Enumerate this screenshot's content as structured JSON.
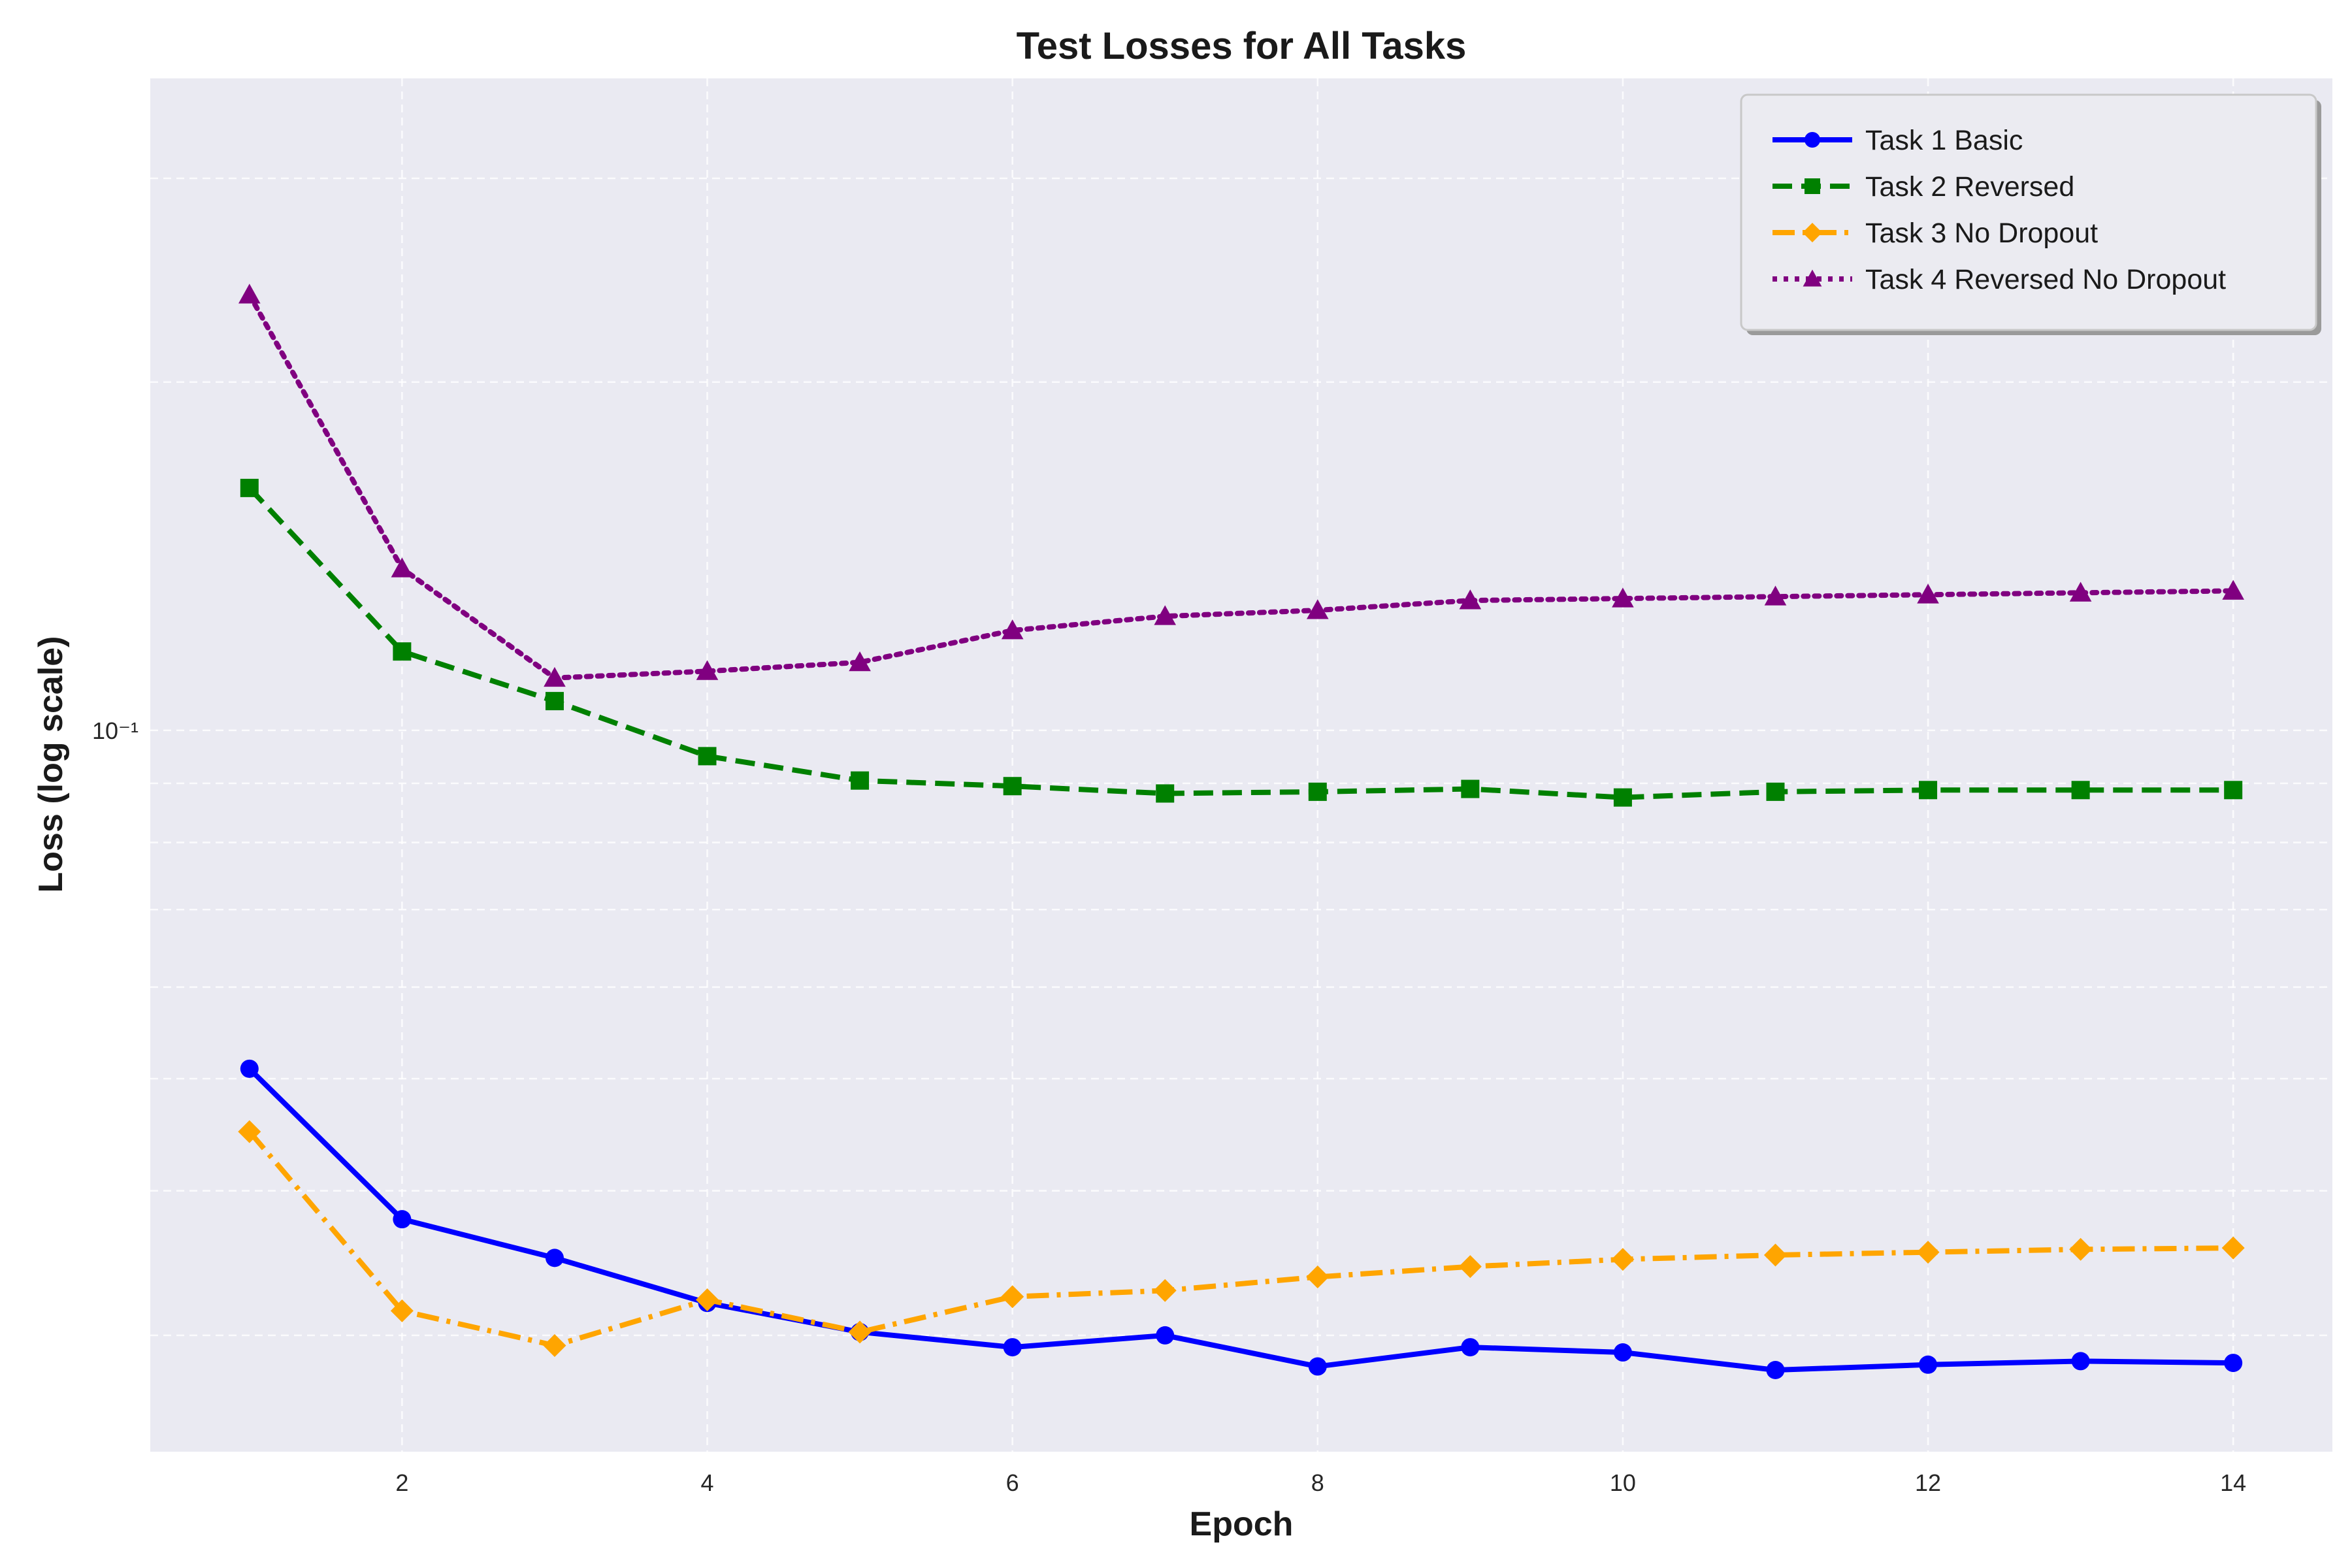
{
  "chart_data": {
    "type": "line",
    "title": "Test Losses for All Tasks",
    "xlabel": "Epoch",
    "ylabel": "Loss (log scale)",
    "yscale": "log",
    "xlim": [
      0.35,
      14.65
    ],
    "ylim": [
      0.0238,
      0.366
    ],
    "grid": true,
    "legend_position": "upper right",
    "x_ticks": [
      2,
      4,
      6,
      8,
      10,
      12,
      14
    ],
    "x_tick_labels": [
      "2",
      "4",
      "6",
      "8",
      "10",
      "12",
      "14"
    ],
    "y_major_ticks": [
      0.1
    ],
    "y_major_tick_labels": [
      "10⁻¹"
    ],
    "y_minor_ticks": [
      0.03,
      0.04,
      0.05,
      0.06,
      0.07,
      0.08,
      0.09,
      0.2,
      0.3
    ],
    "x": [
      1,
      2,
      3,
      4,
      5,
      6,
      7,
      8,
      9,
      10,
      11,
      12,
      13,
      14
    ],
    "series": [
      {
        "name": "Task 1 Basic",
        "color": "#0000ff",
        "line_style": "solid",
        "marker": "circle",
        "values": [
          0.051,
          0.0378,
          0.035,
          0.032,
          0.0302,
          0.0293,
          0.03,
          0.0282,
          0.0293,
          0.029,
          0.028,
          0.0283,
          0.0285,
          0.0284
        ]
      },
      {
        "name": "Task 2 Reversed",
        "color": "#008000",
        "line_style": "dashed",
        "marker": "square",
        "values": [
          0.162,
          0.117,
          0.106,
          0.095,
          0.0905,
          0.0895,
          0.0882,
          0.0885,
          0.089,
          0.0875,
          0.0885,
          0.0888,
          0.0888,
          0.0888
        ]
      },
      {
        "name": "Task 3 No Dropout",
        "color": "#ffa500",
        "line_style": "dashdot",
        "marker": "diamond",
        "values": [
          0.045,
          0.0315,
          0.0294,
          0.0322,
          0.0302,
          0.0324,
          0.0328,
          0.0337,
          0.0344,
          0.0349,
          0.0352,
          0.0354,
          0.0356,
          0.0357
        ]
      },
      {
        "name": "Task 4 Reversed No Dropout",
        "color": "#800080",
        "line_style": "dotted",
        "marker": "triangle",
        "values": [
          0.238,
          0.138,
          0.111,
          0.1125,
          0.1145,
          0.122,
          0.1255,
          0.127,
          0.1295,
          0.13,
          0.1305,
          0.131,
          0.1315,
          0.132
        ]
      }
    ]
  }
}
